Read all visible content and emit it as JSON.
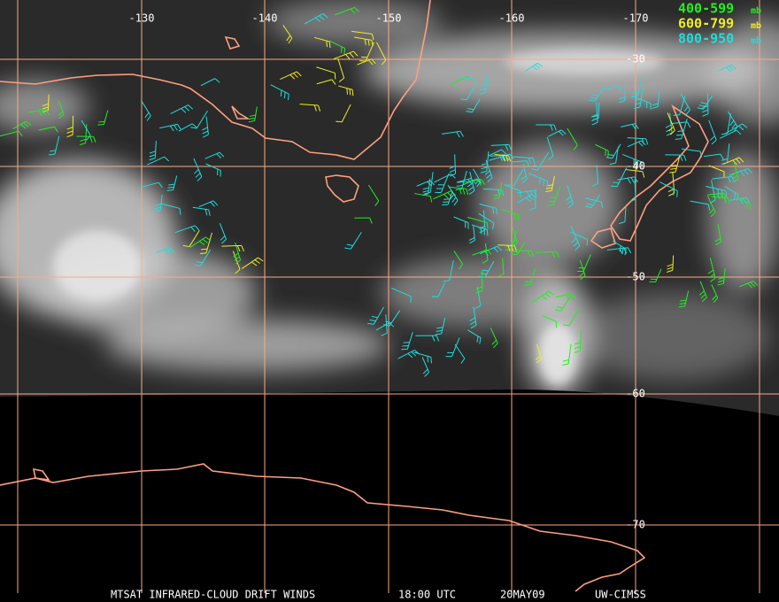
{
  "map": {
    "longitude_labels": [
      "-130",
      "-140",
      "-150",
      "-160",
      "-170"
    ],
    "latitude_labels": [
      "-30",
      "-40",
      "-50",
      "-60",
      "-70"
    ],
    "legend": [
      {
        "label": "400-599",
        "unit": "mb",
        "color": "#22ee22"
      },
      {
        "label": "600-799",
        "unit": "mb",
        "color": "#eeee22"
      },
      {
        "label": "800-950",
        "unit": "mb",
        "color": "#22dddd"
      }
    ],
    "caption": [
      "MTSAT INFRARED-CLOUD DRIFT WINDS",
      "18:00 UTC",
      "20MAY09",
      "UW-CIMSS"
    ]
  }
}
